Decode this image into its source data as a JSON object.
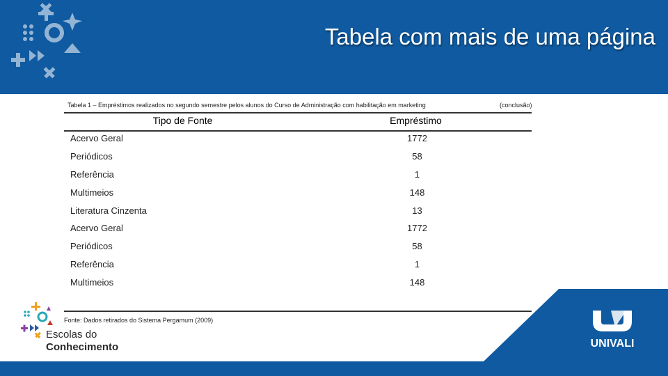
{
  "header": {
    "title": "Tabela com mais de uma página"
  },
  "table": {
    "caption": "Tabela 1 – Empréstimos realizados no segundo semestre pelos alunos do Curso de Administração com habilitação em marketing",
    "status": "(conclusão)",
    "columns": [
      "Tipo de Fonte",
      "Empréstimo"
    ],
    "rows": [
      {
        "name": "Acervo Geral",
        "value": "1772"
      },
      {
        "name": "Periódicos",
        "value": "58"
      },
      {
        "name": "Referência",
        "value": "1"
      },
      {
        "name": "Multimeios",
        "value": "148"
      },
      {
        "name": "Literatura Cinzenta",
        "value": "13"
      },
      {
        "name": "Acervo Geral",
        "value": "1772"
      },
      {
        "name": "Periódicos",
        "value": "58"
      },
      {
        "name": "Referência",
        "value": "1"
      },
      {
        "name": "Multimeios",
        "value": "148"
      }
    ],
    "source": "Fonte: Dados retirados do Sistema Pergamum (2009)"
  },
  "footer": {
    "logo_line1": "Escolas do",
    "logo_line2": "Conhecimento",
    "brand": "UNIVALI"
  },
  "colors": {
    "primary_blue": "#0f5aa0",
    "accent_orange": "#f0a020",
    "accent_purple": "#8a3fa0",
    "accent_teal": "#2aa8b8"
  }
}
